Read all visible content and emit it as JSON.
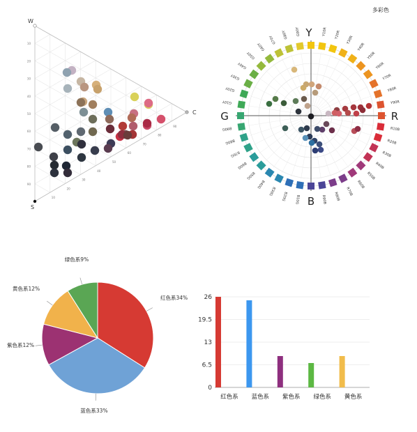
{
  "page": {
    "title": "多彩色"
  },
  "chart_data": [
    {
      "type": "scatter",
      "corner_labels": {
        "w": "W",
        "c": "C",
        "s": "S"
      },
      "axis_ticks": [
        "10",
        "20",
        "30",
        "40",
        "50",
        "60",
        "70",
        "80",
        "90"
      ],
      "point_colors": [
        "#c3b2c3",
        "#a7b3ba",
        "#c6b6a3",
        "#c9a67d",
        "#d6b07a",
        "#8fa2b0",
        "#b99680",
        "#c7a16b",
        "#d9d159",
        "#dbcb62",
        "#7d8f95",
        "#a17f5e",
        "#8c7258",
        "#5e8eb5",
        "#dd6b85",
        "#c87083",
        "#555e66",
        "#6d6e5a",
        "#8e6a5a",
        "#b16c58",
        "#c74a67",
        "#d5506b",
        "#c63246",
        "#5f6871",
        "#52616d",
        "#6c765c",
        "#706850",
        "#b15d6d",
        "#a92a45",
        "#b23b37",
        "#494c52",
        "#3c4f60",
        "#3d3b56",
        "#7a5155",
        "#8e2e3f",
        "#a43536",
        "#3e4048",
        "#2d3540",
        "#383d4d",
        "#5b3c50",
        "#6b2d3a",
        "#6a3c3b",
        "#262b32",
        "#1f2734",
        "#30303d",
        "#332d3a",
        "#2d323d"
      ]
    },
    {
      "type": "scatter",
      "hue_labels": {
        "y": "Y",
        "r": "R",
        "b": "B",
        "g": "G"
      },
      "hue_ticks": [
        "Y",
        "Y10R",
        "Y20R",
        "Y30R",
        "Y40R",
        "Y50R",
        "Y60R",
        "Y70R",
        "Y80R",
        "Y90R",
        "R",
        "R10B",
        "R20B",
        "R30B",
        "R40B",
        "R50B",
        "R60B",
        "R70B",
        "R80B",
        "R90B",
        "B",
        "B10G",
        "B20G",
        "B30G",
        "B40G",
        "B50G",
        "B60G",
        "B70G",
        "B80G",
        "B90G",
        "G",
        "G10Y",
        "G20Y",
        "G30Y",
        "G40Y",
        "G50Y",
        "G60Y",
        "G70Y",
        "G80Y",
        "G90Y"
      ]
    },
    {
      "type": "pie",
      "slices": [
        {
          "label": "红色系34%",
          "value": 34,
          "color": "#d63a33"
        },
        {
          "label": "蓝色系33%",
          "value": 33,
          "color": "#6fa2d6"
        },
        {
          "label": "紫色系12%",
          "value": 12,
          "color": "#9c3272"
        },
        {
          "label": "黄色系12%",
          "value": 12,
          "color": "#f1b24b"
        },
        {
          "label": "绿色系9%",
          "value": 9,
          "color": "#5aa654"
        }
      ]
    },
    {
      "type": "bar",
      "categories": [
        "红色系",
        "蓝色系",
        "紫色系",
        "绿色系",
        "黄色系"
      ],
      "values": [
        26,
        25,
        9,
        7,
        9
      ],
      "colors": [
        "#d63a33",
        "#3c97ef",
        "#8e2f7e",
        "#5cb843",
        "#f1bc4b"
      ],
      "yticks": [
        "0",
        "6.5",
        "13",
        "19.5",
        "26"
      ],
      "ylim": [
        0,
        26
      ]
    }
  ]
}
